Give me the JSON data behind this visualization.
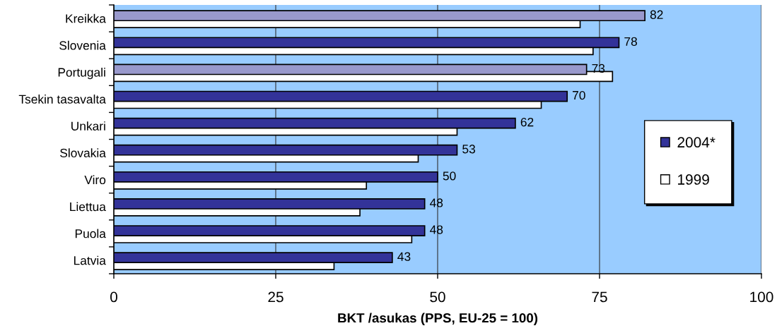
{
  "chart_data": {
    "type": "bar",
    "orientation": "horizontal",
    "categories": [
      "Kreikka",
      "Slovenia",
      "Portugali",
      "Tsekin tasavalta",
      "Unkari",
      "Slovakia",
      "Viro",
      "Liettua",
      "Puola",
      "Latvia"
    ],
    "series": [
      {
        "name": "2004*",
        "color": "#333399",
        "colors": [
          "#9999cc",
          "#333399",
          "#9999cc",
          "#333399",
          "#333399",
          "#333399",
          "#333399",
          "#333399",
          "#333399",
          "#333399"
        ],
        "values": [
          82,
          78,
          73,
          70,
          62,
          53,
          50,
          48,
          48,
          43
        ],
        "value_labels": [
          "82",
          "78",
          "73",
          "70",
          "62",
          "53",
          "50",
          "48",
          "48",
          "43"
        ]
      },
      {
        "name": "1999",
        "color": "#ffffff",
        "values": [
          72,
          74,
          77,
          66,
          53,
          47,
          39,
          38,
          46,
          34
        ]
      }
    ],
    "xlabel": "BKT /asukas (PPS, EU-25 = 100)",
    "xlim": [
      0,
      100
    ],
    "xticks": [
      0,
      25,
      50,
      75,
      100
    ],
    "grid": "x",
    "legend": "right"
  }
}
